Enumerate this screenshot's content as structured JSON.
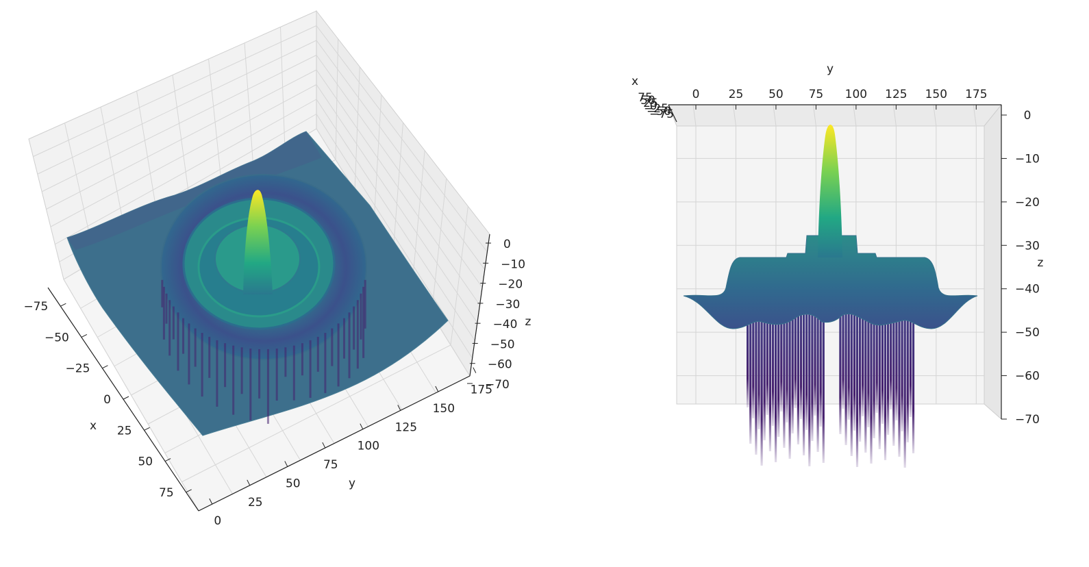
{
  "chart_data": [
    {
      "type": "surface3d",
      "view": "elevated oblique",
      "xlabel": "x",
      "ylabel": "y",
      "zlabel": "z",
      "x_ticks": [
        "−75",
        "−50",
        "−25",
        "0",
        "25",
        "50",
        "75"
      ],
      "y_ticks": [
        "0",
        "25",
        "50",
        "75",
        "100",
        "125",
        "150",
        "175"
      ],
      "z_ticks": [
        "0",
        "−10",
        "−20",
        "−30",
        "−40",
        "−50",
        "−60",
        "−70"
      ],
      "xlim": [
        -90,
        90
      ],
      "ylim": [
        0,
        180
      ],
      "zlim": [
        -70,
        0
      ],
      "colormap": "viridis",
      "grid": true,
      "surface": {
        "description_peak": {
          "x": 0,
          "y": 90,
          "z": 0
        },
        "plateau_z": -34,
        "edge_z": -42,
        "trough_z": -70
      }
    },
    {
      "type": "surface3d",
      "view": "side view along x",
      "xlabel": "x",
      "ylabel": "y",
      "zlabel": "z",
      "x_ticks": [
        "75",
        "50",
        "25",
        "0",
        "−25",
        "−50",
        "−75"
      ],
      "y_ticks": [
        "0",
        "25",
        "50",
        "75",
        "100",
        "125",
        "150",
        "175"
      ],
      "z_ticks": [
        "0",
        "−10",
        "−20",
        "−30",
        "−40",
        "−50",
        "−60",
        "−70"
      ],
      "xlim": [
        -90,
        90
      ],
      "ylim": [
        0,
        180
      ],
      "zlim": [
        -70,
        0
      ],
      "colormap": "viridis",
      "grid": true
    }
  ]
}
